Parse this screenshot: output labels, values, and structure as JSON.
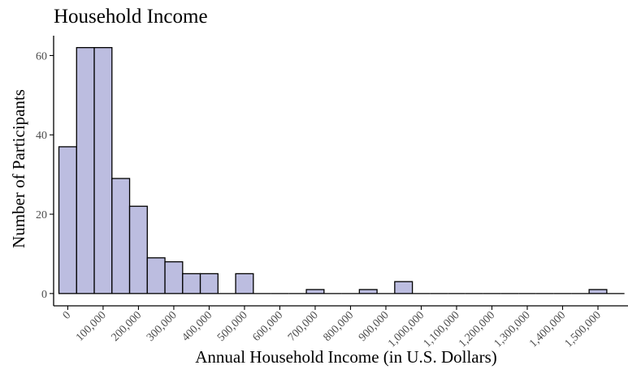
{
  "chart_data": {
    "type": "bar",
    "title": "Household Income",
    "xlabel": "Annual Household Income (in U.S. Dollars)",
    "ylabel": "Number of Participants",
    "bin_width": 50000,
    "bin_centers": [
      0,
      50000,
      100000,
      150000,
      200000,
      250000,
      300000,
      350000,
      400000,
      450000,
      500000,
      550000,
      600000,
      650000,
      700000,
      750000,
      800000,
      850000,
      900000,
      950000,
      1000000,
      1050000,
      1100000,
      1150000,
      1200000,
      1250000,
      1300000,
      1350000,
      1400000,
      1450000,
      1500000,
      1550000
    ],
    "values": [
      37,
      62,
      62,
      29,
      22,
      9,
      8,
      5,
      5,
      0,
      5,
      0,
      0,
      0,
      1,
      0,
      0,
      1,
      0,
      3,
      0,
      0,
      0,
      0,
      0,
      0,
      0,
      0,
      0,
      0,
      1,
      0
    ],
    "x_ticks": [
      0,
      100000,
      200000,
      300000,
      400000,
      500000,
      600000,
      700000,
      800000,
      900000,
      1000000,
      1100000,
      1200000,
      1300000,
      1400000,
      1500000
    ],
    "x_tick_labels": [
      "0",
      "100,000",
      "200,000",
      "300,000",
      "400,000",
      "500,000",
      "600,000",
      "700,000",
      "800,000",
      "900,000",
      "1,000,000",
      "1,100,000",
      "1,200,000",
      "1,300,000",
      "1,400,000",
      "1,500,000"
    ],
    "y_ticks": [
      0,
      20,
      40,
      60
    ],
    "y_tick_labels": [
      "0",
      "20",
      "40",
      "60"
    ],
    "xlim": [
      -40000,
      1585000
    ],
    "ylim": [
      -3.1,
      65
    ],
    "grid": false,
    "legend": "none"
  }
}
